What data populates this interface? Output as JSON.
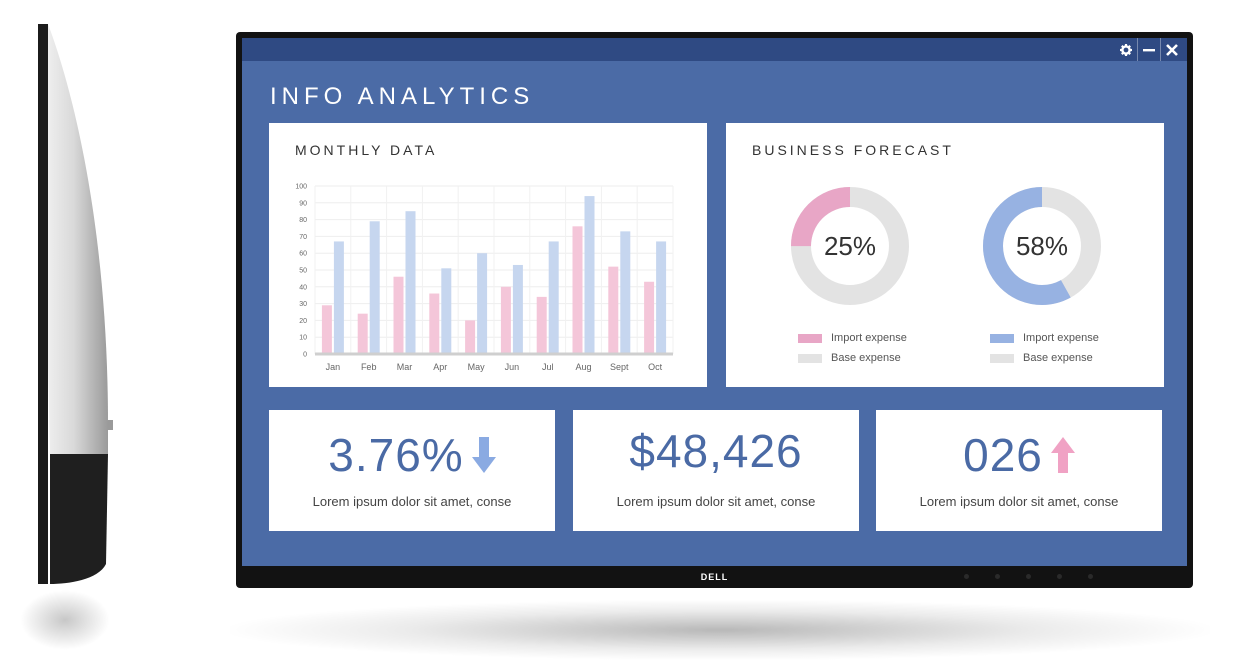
{
  "app": {
    "title": "INFO ANALYTICS",
    "brand": "DELL",
    "window_controls": [
      "gear-icon",
      "minimize-icon",
      "close-icon"
    ]
  },
  "monthly": {
    "title": "MONTHLY DATA",
    "chart_data": {
      "type": "bar",
      "categories": [
        "Jan",
        "Feb",
        "Mar",
        "Apr",
        "May",
        "Jun",
        "Jul",
        "Aug",
        "Sept",
        "Oct"
      ],
      "series": [
        {
          "color": "#f4c6d9",
          "values": [
            29,
            24,
            46,
            36,
            20,
            40,
            34,
            76,
            52,
            43
          ]
        },
        {
          "color": "#c6d6ef",
          "values": [
            67,
            79,
            85,
            51,
            60,
            53,
            67,
            94,
            73,
            67
          ]
        }
      ],
      "yticks": [
        0,
        10,
        20,
        30,
        40,
        50,
        60,
        70,
        80,
        90,
        100
      ],
      "ylim": [
        0,
        100
      ],
      "grid": true
    }
  },
  "forecast": {
    "title": "BUSINESS FORECAST",
    "donuts": [
      {
        "value": 25,
        "label": "25%",
        "accent": "#e8a6c6",
        "base": "#e3e3e3",
        "legend": [
          "Import expense",
          "Base expense"
        ]
      },
      {
        "value": 58,
        "label": "58%",
        "accent": "#97b2e2",
        "base": "#e3e3e3",
        "legend": [
          "Import expense",
          "Base expense"
        ]
      }
    ]
  },
  "stats": [
    {
      "value": "3.76%",
      "icon": "arrow-down-icon",
      "icon_color": "#8aaae2",
      "desc": "Lorem ipsum dolor sit amet, conse"
    },
    {
      "value": "$48,426",
      "desc": "Lorem ipsum dolor sit amet, conse"
    },
    {
      "value": "026",
      "icon": "arrow-up-icon",
      "icon_color": "#f0a2c4",
      "desc": "Lorem ipsum dolor sit amet, conse"
    }
  ],
  "colors": {
    "screen_bg": "#4b6ba6",
    "titlebar": "#2f4a83",
    "accent_text": "#4a6aa5"
  }
}
